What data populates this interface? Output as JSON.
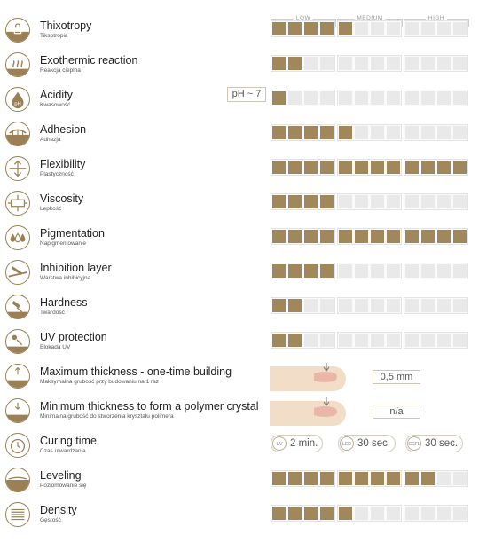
{
  "scale": {
    "low": "LOW",
    "medium": "MEDIUM",
    "high": "HIGH"
  },
  "colors": {
    "filled": "#a0885a",
    "empty": "#e9e9e9",
    "icon": "#9b8055"
  },
  "rows": [
    {
      "title": "Thixotropy",
      "subtitle": "Tiksotropia",
      "icon": "thixotropy-icon",
      "level": 5
    },
    {
      "title": "Exothermic reaction",
      "subtitle": "Reakcja cieplna",
      "icon": "exothermic-icon",
      "level": 2
    },
    {
      "title": "Acidity",
      "subtitle": "Kwasowość",
      "icon": "acidity-icon",
      "level": 1,
      "badge": "pH ~ 7"
    },
    {
      "title": "Adhesion",
      "subtitle": "Adhezja",
      "icon": "adhesion-icon",
      "level": 5
    },
    {
      "title": "Flexibility",
      "subtitle": "Plastyczność",
      "icon": "flexibility-icon",
      "level": 12
    },
    {
      "title": "Viscosity",
      "subtitle": "Lepkość",
      "icon": "viscosity-icon",
      "level": 4
    },
    {
      "title": "Pigmentation",
      "subtitle": "Napigmentowanie",
      "icon": "pigmentation-icon",
      "level": 12
    },
    {
      "title": "Inhibition layer",
      "subtitle": "Warstwa inhibicyjna",
      "icon": "inhibition-icon",
      "level": 4
    },
    {
      "title": "Hardness",
      "subtitle": "Twardość",
      "icon": "hardness-icon",
      "level": 2
    },
    {
      "title": "UV protection",
      "subtitle": "Blokada UV",
      "icon": "uv-protection-icon",
      "level": 2
    },
    {
      "title": "Maximum thickness - one-time building",
      "subtitle": "Maksymalna grubość przy budowaniu na 1 raz",
      "icon": "max-thickness-icon",
      "icon_text": "max",
      "value": "0,5 mm"
    },
    {
      "title": "Minimum thickness to form a polymer crystal",
      "subtitle": "Minimalna grubość do stworzenia kryształu polimera",
      "icon": "min-thickness-icon",
      "icon_text": "min",
      "value": "n/a"
    },
    {
      "title": "Curing time",
      "subtitle": "Czas utwardzania",
      "icon": "curing-time-icon"
    },
    {
      "title": "Leveling",
      "subtitle": "Poziomowanie się",
      "icon": "leveling-icon",
      "level": 10
    },
    {
      "title": "Density",
      "subtitle": "Gęstość",
      "icon": "density-icon",
      "level": 5
    }
  ],
  "curing": [
    {
      "lamp": "UV",
      "value": "2 min."
    },
    {
      "lamp": "LED",
      "value": "30 sec."
    },
    {
      "lamp": "CCFL",
      "value": "30 sec."
    }
  ]
}
